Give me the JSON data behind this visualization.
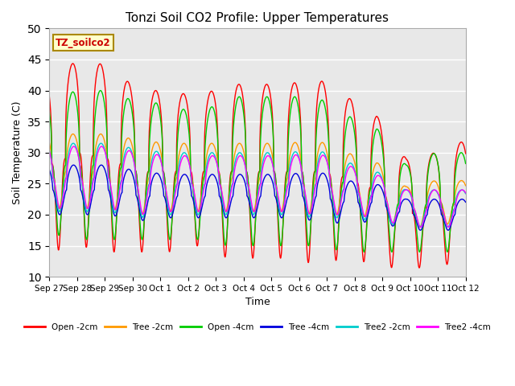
{
  "title": "Tonzi Soil CO2 Profile: Upper Temperatures",
  "xlabel": "Time",
  "ylabel": "Soil Temperature (C)",
  "ylim": [
    10,
    50
  ],
  "annotation": "TZ_soilco2",
  "xtick_labels": [
    "Sep 27",
    "Sep 28",
    "Sep 29",
    "Sep 30",
    "Oct 1",
    "Oct 2",
    "Oct 3",
    "Oct 4",
    "Oct 5",
    "Oct 6",
    "Oct 7",
    "Oct 8",
    "Oct 9",
    "Oct 10",
    "Oct 11",
    "Oct 12"
  ],
  "series": {
    "Open -2cm": {
      "color": "#ff0000"
    },
    "Tree -2cm": {
      "color": "#ff9900"
    },
    "Open -4cm": {
      "color": "#00cc00"
    },
    "Tree -4cm": {
      "color": "#0000dd"
    },
    "Tree2 -2cm": {
      "color": "#00cccc"
    },
    "Tree2 -4cm": {
      "color": "#ff00ff"
    }
  },
  "bg_color": "#e8e8e8",
  "fig_bg": "#ffffff",
  "grid_color": "#ffffff",
  "n_days": 15,
  "points_per_day": 144
}
